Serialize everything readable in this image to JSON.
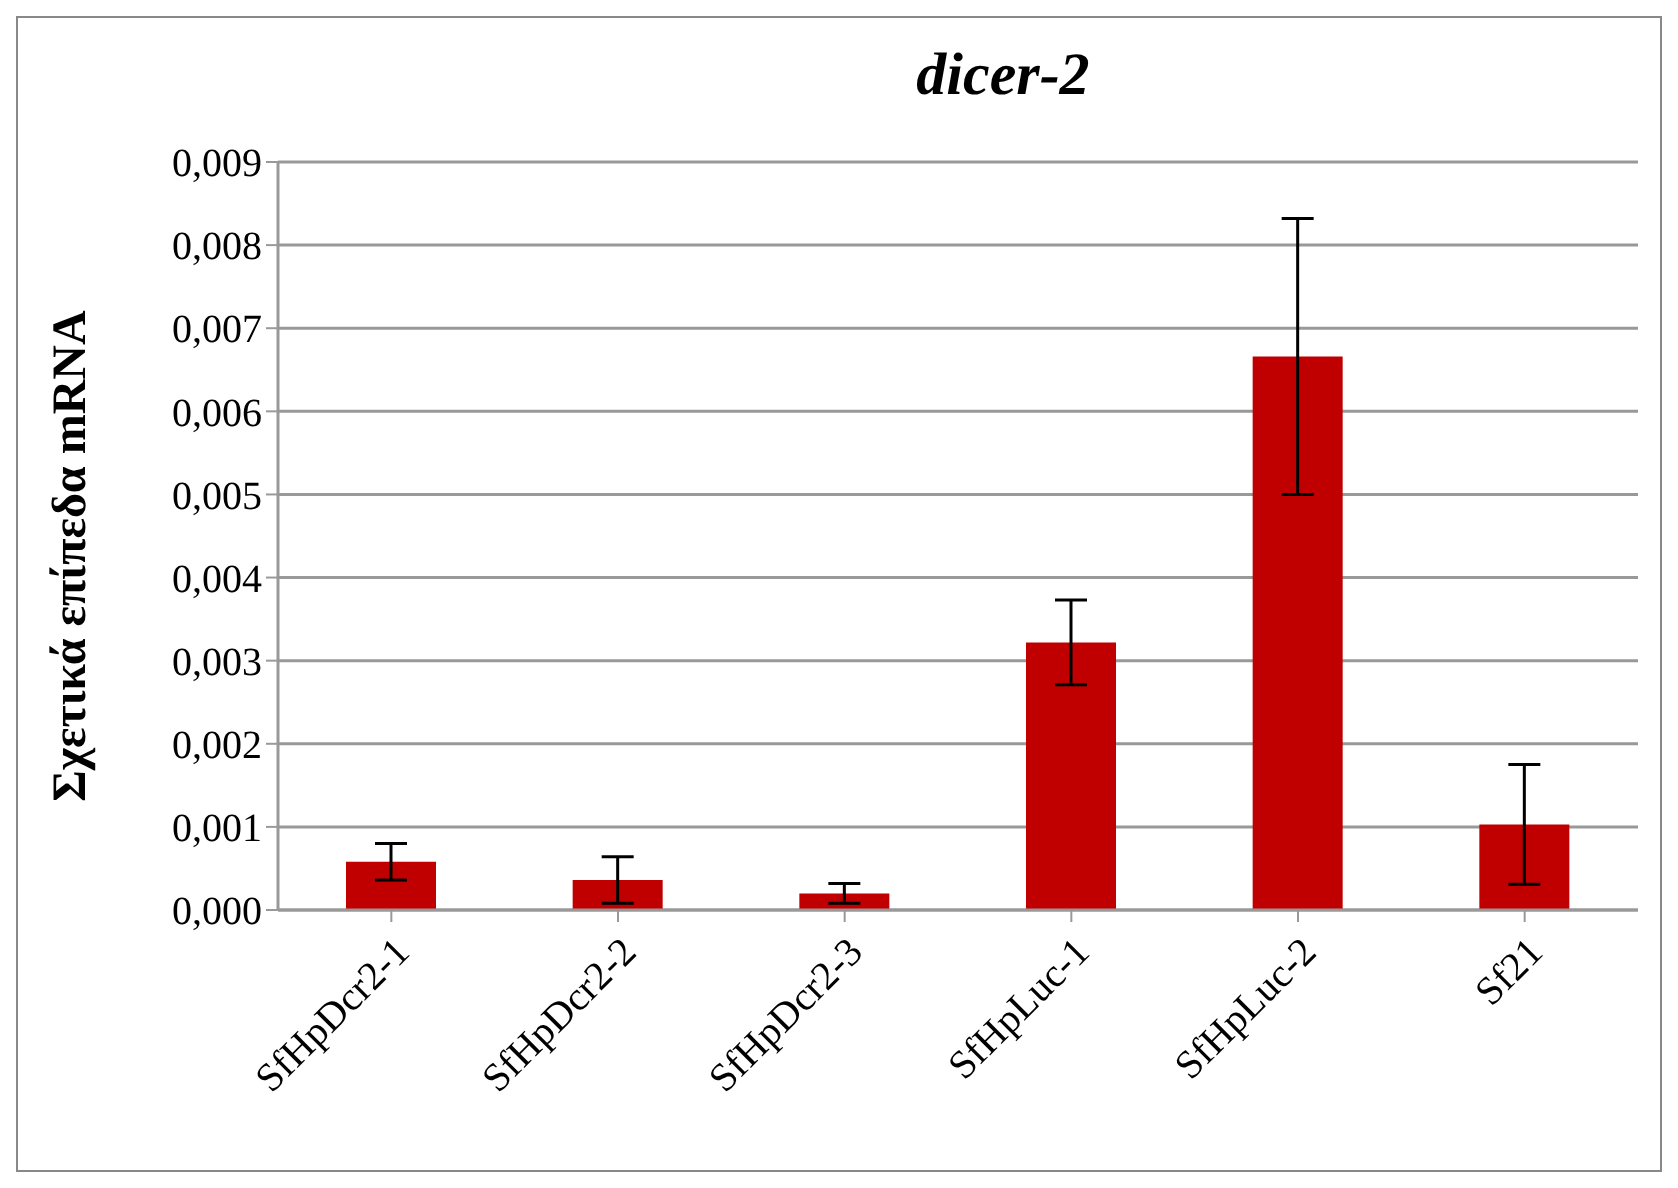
{
  "chart_data": {
    "type": "bar",
    "title": "dicer-2",
    "ylabel": "Σχετικά επίπεδα mRNA",
    "categories": [
      "SfHpDcr2-1",
      "SfHpDcr2-2",
      "SfHpDcr2-3",
      "SfHpLuc-1",
      "SfHpLuc-2",
      "Sf21"
    ],
    "values": [
      0.00058,
      0.00036,
      0.0002,
      0.00322,
      0.00666,
      0.00103
    ],
    "errors": [
      0.00022,
      0.00028,
      0.00012,
      0.00051,
      0.00166,
      0.00072
    ],
    "color": "#c00000",
    "ylim": [
      0,
      0.009
    ],
    "yticks": [
      {
        "value": 0,
        "label": "0,000"
      },
      {
        "value": 0.001,
        "label": "0,001"
      },
      {
        "value": 0.002,
        "label": "0,002"
      },
      {
        "value": 0.003,
        "label": "0,003"
      },
      {
        "value": 0.004,
        "label": "0,004"
      },
      {
        "value": 0.005,
        "label": "0,005"
      },
      {
        "value": 0.006,
        "label": "0,006"
      },
      {
        "value": 0.007,
        "label": "0,007"
      },
      {
        "value": 0.008,
        "label": "0,008"
      },
      {
        "value": 0.009,
        "label": "0,009"
      }
    ],
    "grid": "y"
  }
}
